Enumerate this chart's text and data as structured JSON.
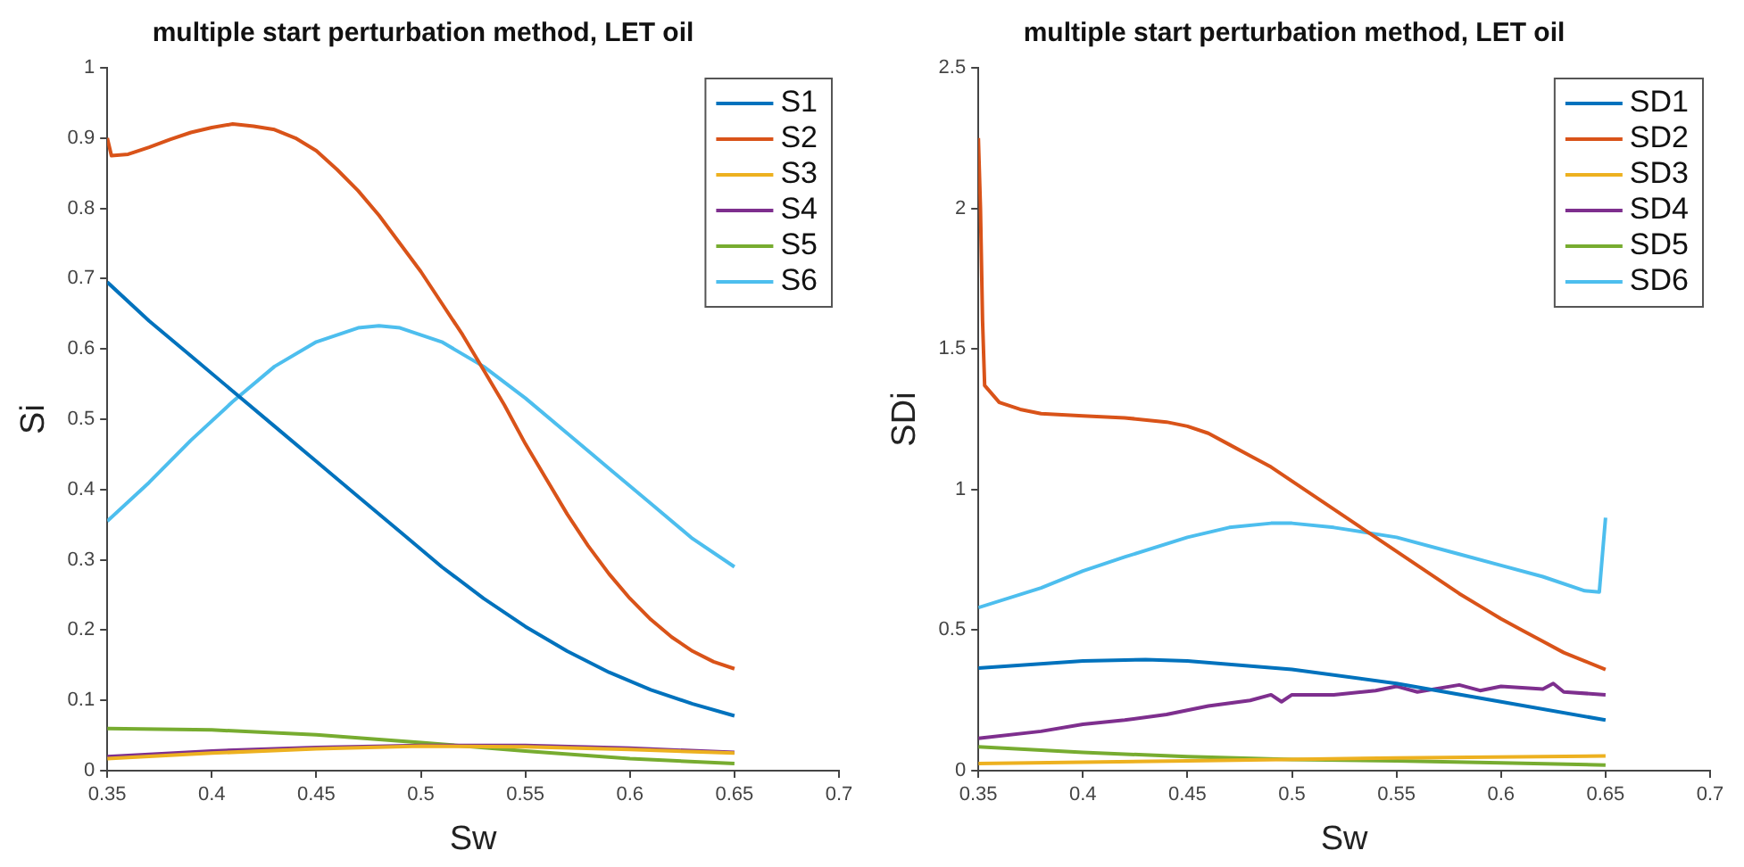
{
  "chart_data": [
    {
      "type": "line",
      "title": "multiple start perturbation method, LET oil",
      "xlabel": "Sw",
      "ylabel": "Si",
      "xlim": [
        0.35,
        0.7
      ],
      "xticks": [
        0.35,
        0.4,
        0.45,
        0.5,
        0.55,
        0.6,
        0.65,
        0.7
      ],
      "ylim": [
        0,
        1
      ],
      "yticks": [
        0,
        0.1,
        0.2,
        0.3,
        0.4,
        0.5,
        0.6,
        0.7,
        0.8,
        0.9,
        1
      ],
      "grid": false,
      "legend": "top right",
      "marker": "none",
      "line_style": "solid",
      "series": [
        {
          "name": "S1",
          "color": "#0072bd",
          "x": [
            0.35,
            0.37,
            0.39,
            0.41,
            0.43,
            0.45,
            0.47,
            0.49,
            0.51,
            0.53,
            0.55,
            0.57,
            0.59,
            0.61,
            0.63,
            0.65
          ],
          "values": [
            0.695,
            0.64,
            0.59,
            0.54,
            0.49,
            0.44,
            0.39,
            0.34,
            0.29,
            0.245,
            0.205,
            0.17,
            0.14,
            0.115,
            0.095,
            0.078
          ]
        },
        {
          "name": "S2",
          "color": "#d95319",
          "x": [
            0.35,
            0.352,
            0.36,
            0.37,
            0.38,
            0.39,
            0.4,
            0.41,
            0.42,
            0.43,
            0.44,
            0.45,
            0.46,
            0.47,
            0.48,
            0.49,
            0.5,
            0.51,
            0.52,
            0.53,
            0.54,
            0.55,
            0.56,
            0.57,
            0.58,
            0.59,
            0.6,
            0.61,
            0.62,
            0.63,
            0.64,
            0.65
          ],
          "values": [
            0.9,
            0.875,
            0.877,
            0.887,
            0.898,
            0.908,
            0.915,
            0.92,
            0.917,
            0.912,
            0.9,
            0.882,
            0.855,
            0.825,
            0.79,
            0.75,
            0.71,
            0.665,
            0.62,
            0.57,
            0.52,
            0.465,
            0.415,
            0.365,
            0.32,
            0.28,
            0.245,
            0.215,
            0.19,
            0.17,
            0.155,
            0.145
          ]
        },
        {
          "name": "S3",
          "color": "#edb120",
          "x": [
            0.35,
            0.4,
            0.45,
            0.5,
            0.55,
            0.6,
            0.65
          ],
          "values": [
            0.017,
            0.025,
            0.031,
            0.035,
            0.034,
            0.03,
            0.025
          ]
        },
        {
          "name": "S4",
          "color": "#7e2f8e",
          "x": [
            0.35,
            0.4,
            0.45,
            0.5,
            0.55,
            0.6,
            0.65
          ],
          "values": [
            0.02,
            0.028,
            0.033,
            0.036,
            0.036,
            0.032,
            0.026
          ]
        },
        {
          "name": "S5",
          "color": "#77ac30",
          "x": [
            0.35,
            0.4,
            0.45,
            0.5,
            0.55,
            0.6,
            0.65
          ],
          "values": [
            0.06,
            0.058,
            0.051,
            0.04,
            0.028,
            0.017,
            0.01
          ]
        },
        {
          "name": "S6",
          "color": "#4dbeee",
          "x": [
            0.35,
            0.37,
            0.39,
            0.41,
            0.43,
            0.45,
            0.47,
            0.48,
            0.49,
            0.51,
            0.53,
            0.55,
            0.57,
            0.59,
            0.61,
            0.63,
            0.65
          ],
          "values": [
            0.355,
            0.41,
            0.47,
            0.525,
            0.575,
            0.61,
            0.63,
            0.633,
            0.63,
            0.61,
            0.575,
            0.53,
            0.48,
            0.43,
            0.38,
            0.33,
            0.29
          ]
        }
      ]
    },
    {
      "type": "line",
      "title": "multiple start perturbation method, LET oil",
      "xlabel": "Sw",
      "ylabel": "SDi",
      "xlim": [
        0.35,
        0.7
      ],
      "xticks": [
        0.35,
        0.4,
        0.45,
        0.5,
        0.55,
        0.6,
        0.65,
        0.7
      ],
      "ylim": [
        0,
        2.5
      ],
      "yticks": [
        0,
        0.5,
        1,
        1.5,
        2,
        2.5
      ],
      "grid": false,
      "legend": "top right",
      "marker": "none",
      "line_style": "solid",
      "series": [
        {
          "name": "SD1",
          "color": "#0072bd",
          "x": [
            0.35,
            0.4,
            0.43,
            0.45,
            0.5,
            0.55,
            0.6,
            0.65
          ],
          "values": [
            0.365,
            0.39,
            0.395,
            0.39,
            0.36,
            0.31,
            0.245,
            0.18
          ]
        },
        {
          "name": "SD2",
          "color": "#d95319",
          "x": [
            0.35,
            0.351,
            0.352,
            0.353,
            0.36,
            0.37,
            0.38,
            0.4,
            0.42,
            0.44,
            0.45,
            0.46,
            0.47,
            0.48,
            0.49,
            0.5,
            0.51,
            0.52,
            0.53,
            0.54,
            0.55,
            0.56,
            0.57,
            0.58,
            0.59,
            0.6,
            0.61,
            0.62,
            0.63,
            0.64,
            0.65
          ],
          "values": [
            2.25,
            2.0,
            1.6,
            1.37,
            1.31,
            1.285,
            1.27,
            1.262,
            1.255,
            1.24,
            1.225,
            1.2,
            1.16,
            1.12,
            1.08,
            1.03,
            0.98,
            0.93,
            0.88,
            0.83,
            0.78,
            0.73,
            0.68,
            0.63,
            0.585,
            0.54,
            0.5,
            0.46,
            0.42,
            0.39,
            0.36
          ]
        },
        {
          "name": "SD3",
          "color": "#edb120",
          "x": [
            0.35,
            0.45,
            0.55,
            0.65
          ],
          "values": [
            0.025,
            0.035,
            0.045,
            0.052
          ]
        },
        {
          "name": "SD4",
          "color": "#7e2f8e",
          "x": [
            0.35,
            0.38,
            0.4,
            0.42,
            0.44,
            0.46,
            0.48,
            0.49,
            0.495,
            0.5,
            0.52,
            0.54,
            0.55,
            0.56,
            0.58,
            0.59,
            0.6,
            0.62,
            0.625,
            0.63,
            0.65
          ],
          "values": [
            0.115,
            0.14,
            0.165,
            0.18,
            0.2,
            0.23,
            0.25,
            0.27,
            0.245,
            0.27,
            0.27,
            0.285,
            0.3,
            0.28,
            0.305,
            0.285,
            0.3,
            0.29,
            0.31,
            0.28,
            0.27
          ]
        },
        {
          "name": "SD5",
          "color": "#77ac30",
          "x": [
            0.35,
            0.4,
            0.45,
            0.5,
            0.55,
            0.6,
            0.65
          ],
          "values": [
            0.085,
            0.065,
            0.05,
            0.04,
            0.035,
            0.028,
            0.02
          ]
        },
        {
          "name": "SD6",
          "color": "#4dbeee",
          "x": [
            0.35,
            0.38,
            0.4,
            0.42,
            0.45,
            0.47,
            0.49,
            0.5,
            0.52,
            0.55,
            0.58,
            0.6,
            0.62,
            0.64,
            0.647,
            0.65
          ],
          "values": [
            0.58,
            0.65,
            0.71,
            0.76,
            0.83,
            0.865,
            0.88,
            0.88,
            0.865,
            0.83,
            0.77,
            0.73,
            0.69,
            0.64,
            0.635,
            0.9
          ]
        }
      ]
    }
  ]
}
